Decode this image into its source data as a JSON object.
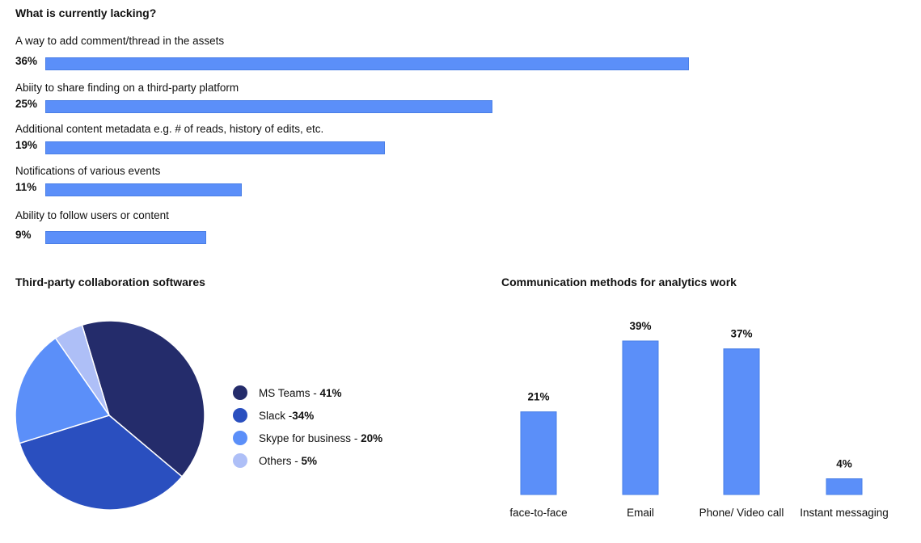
{
  "lacking": {
    "title": "What is currently lacking?"
  },
  "collab": {
    "title": "Third-party collaboration softwares",
    "legend": [
      {
        "name": "MS Teams",
        "sep": " - ",
        "pct": "41%"
      },
      {
        "name": "Slack",
        "sep": " -",
        "pct": "34%"
      },
      {
        "name": "Skype for business",
        "sep": " - ",
        "pct": "20%"
      },
      {
        "name": "Others",
        "sep": " - ",
        "pct": "5%"
      }
    ]
  },
  "comm": {
    "title": "Communication methods for analytics work"
  },
  "chart_data": [
    {
      "type": "bar",
      "orientation": "horizontal",
      "title": "What is currently lacking?",
      "categories": [
        "A way to add comment/thread in the assets",
        "Abiity to share finding on a third-party platform",
        "Additional content metadata e.g. # of reads, history of edits, etc.",
        "Notifications of various events",
        "Ability to follow users or content"
      ],
      "values": [
        36,
        25,
        19,
        11,
        9
      ],
      "labels": [
        "36%",
        "25%",
        "19%",
        "11%",
        "9%"
      ],
      "xlim": [
        0,
        36
      ],
      "grid": false,
      "color": "#5b8ff9"
    },
    {
      "type": "pie",
      "title": "Third-party collaboration softwares",
      "categories": [
        "MS Teams",
        "Slack",
        "Skype for business",
        "Others"
      ],
      "values": [
        41,
        34,
        20,
        5
      ],
      "colors": [
        "#242c6b",
        "#2a4fbf",
        "#5b8ff9",
        "#aebff7"
      ],
      "legend": "right"
    },
    {
      "type": "bar",
      "orientation": "vertical",
      "title": "Communication methods for analytics work",
      "categories": [
        "face-to-face",
        "Email",
        "Phone/ Video call",
        "Instant messaging"
      ],
      "values": [
        21,
        39,
        37,
        4
      ],
      "labels": [
        "21%",
        "39%",
        "37%",
        "4%"
      ],
      "ylim": [
        0,
        39
      ],
      "grid": false,
      "color": "#5b8ff9"
    }
  ]
}
